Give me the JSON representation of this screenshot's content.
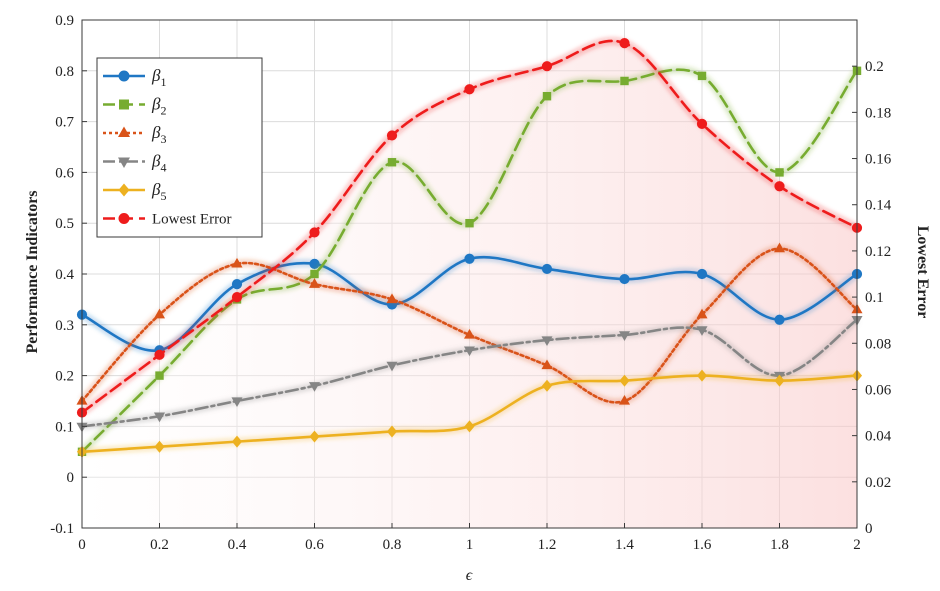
{
  "chart_data": {
    "type": "line",
    "x": [
      0,
      0.2,
      0.4,
      0.6,
      0.8,
      1,
      1.2,
      1.4,
      1.6,
      1.8,
      2
    ],
    "x_tick_labels": [
      "0",
      "0.2",
      "0.4",
      "0.6",
      "0.8",
      "1",
      "1.2",
      "1.4",
      "1.6",
      "1.8",
      "2"
    ],
    "xlim": [
      0,
      2
    ],
    "xlabel": "ϵ",
    "ylabel_left": "Performance Indicators",
    "ylim_left": [
      -0.1,
      0.9
    ],
    "y_tick_labels_left": [
      "-0.1",
      "0",
      "0.1",
      "0.2",
      "0.3",
      "0.4",
      "0.5",
      "0.6",
      "0.7",
      "0.8",
      "0.9"
    ],
    "ylabel_right": "Lowest Error",
    "ylim_right": [
      0,
      0.22
    ],
    "y_tick_labels_right": [
      "0",
      "0.02",
      "0.04",
      "0.06",
      "0.08",
      "0.1",
      "0.12",
      "0.14",
      "0.16",
      "0.18",
      "0.2"
    ],
    "grid": true,
    "legend_position": "top-left",
    "series": [
      {
        "name": "β",
        "subscript": "1",
        "axis": "left",
        "color": "#1f77c4",
        "marker": "circle",
        "dash": "solid",
        "values": [
          0.32,
          0.25,
          0.38,
          0.42,
          0.34,
          0.43,
          0.41,
          0.39,
          0.4,
          0.31,
          0.4
        ]
      },
      {
        "name": "β",
        "subscript": "2",
        "axis": "left",
        "color": "#77ac30",
        "marker": "square",
        "dash": "dashed",
        "values": [
          0.05,
          0.2,
          0.35,
          0.4,
          0.62,
          0.5,
          0.75,
          0.78,
          0.79,
          0.6,
          0.8
        ]
      },
      {
        "name": "β",
        "subscript": "3",
        "axis": "left",
        "color": "#d95319",
        "marker": "triangle-up",
        "dash": "dotted",
        "values": [
          0.15,
          0.32,
          0.42,
          0.38,
          0.35,
          0.28,
          0.22,
          0.15,
          0.32,
          0.45,
          0.33
        ]
      },
      {
        "name": "β",
        "subscript": "4",
        "axis": "left",
        "color": "#858585",
        "marker": "triangle-down",
        "dash": "dashdot",
        "values": [
          0.1,
          0.12,
          0.15,
          0.18,
          0.22,
          0.25,
          0.27,
          0.28,
          0.29,
          0.2,
          0.31
        ]
      },
      {
        "name": "β",
        "subscript": "5",
        "axis": "left",
        "color": "#edb120",
        "marker": "diamond",
        "dash": "solid",
        "values": [
          0.05,
          0.06,
          0.07,
          0.08,
          0.09,
          0.1,
          0.18,
          0.19,
          0.2,
          0.19,
          0.2
        ]
      },
      {
        "name": "Lowest Error",
        "subscript": "",
        "axis": "right",
        "color": "#ee1c1c",
        "marker": "circle",
        "dash": "dashed",
        "values": [
          0.05,
          0.075,
          0.1,
          0.128,
          0.17,
          0.19,
          0.2,
          0.21,
          0.175,
          0.148,
          0.13
        ]
      }
    ]
  }
}
